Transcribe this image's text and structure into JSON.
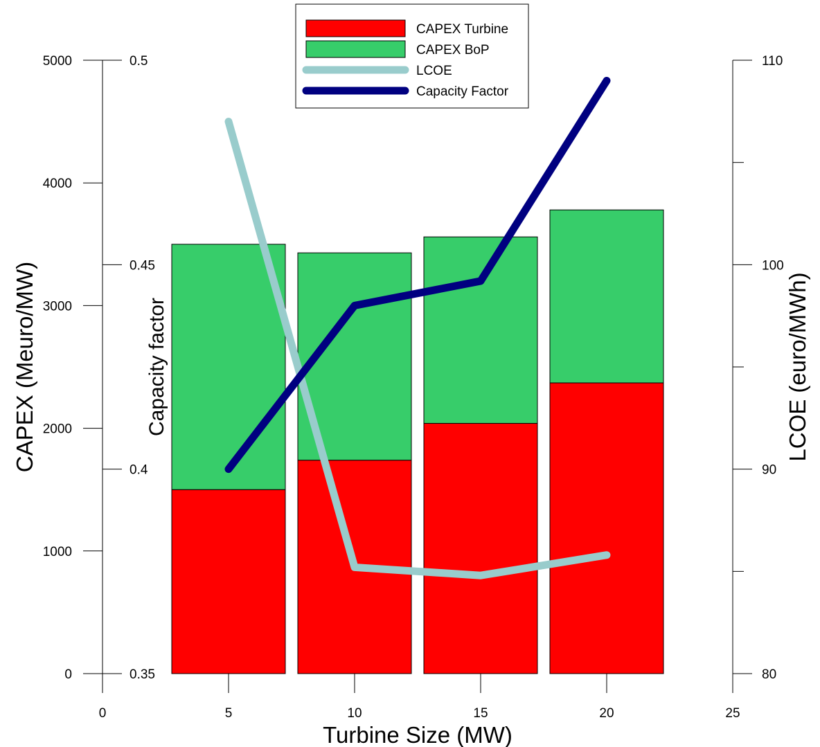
{
  "chart_data": {
    "type": "bar",
    "x_axis": {
      "label": "Turbine Size (MW)",
      "range": [
        0,
        25
      ],
      "ticks": [
        0,
        5,
        10,
        15,
        20,
        25
      ]
    },
    "left_axis_capex": {
      "label": "CAPEX (Meuro/MW)",
      "range": [
        0,
        5000
      ],
      "ticks": [
        0,
        1000,
        2000,
        3000,
        4000,
        5000
      ]
    },
    "left_axis_capacity": {
      "label": "Capacity factor",
      "range": [
        0.35,
        0.5
      ],
      "ticks": [
        0.35,
        0.4,
        0.45,
        0.5
      ],
      "tick_labels": [
        "0.35",
        "0.4",
        "0.45",
        "0.5"
      ]
    },
    "right_axis_lcoe": {
      "label": "LCOE (euro/MWh)",
      "range": [
        80,
        110
      ],
      "ticks": [
        80,
        90,
        100,
        110
      ]
    },
    "x": [
      5,
      10,
      15,
      20
    ],
    "bars": [
      {
        "name": "CAPEX Turbine",
        "color": "#ff0000",
        "values": [
          1500,
          1740,
          2040,
          2370
        ]
      },
      {
        "name": "CAPEX BoP",
        "color": "#37cd6a",
        "values": [
          2000,
          1690,
          1520,
          1410
        ]
      }
    ],
    "lines": [
      {
        "name": "LCOE",
        "color": "#99cccc",
        "axis": "lcoe",
        "values": [
          107,
          85.2,
          84.8,
          85.8
        ]
      },
      {
        "name": "Capacity Factor",
        "color": "#000080",
        "axis": "capacity",
        "values": [
          0.4,
          0.44,
          0.446,
          0.495
        ]
      }
    ],
    "legend_position": "top-center"
  }
}
